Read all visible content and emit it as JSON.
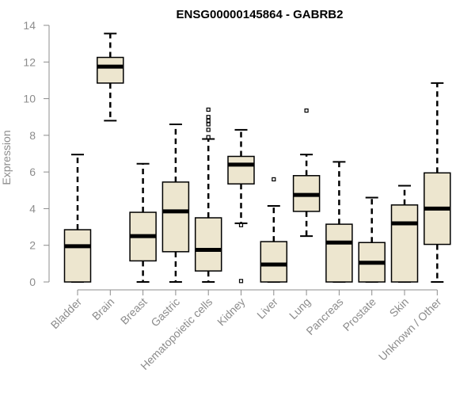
{
  "chart_data": {
    "type": "box",
    "title": "ENSG00000145864 - GABRB2",
    "xlabel": "",
    "ylabel": "Expression",
    "ylim": [
      0,
      14
    ],
    "yticks": [
      0,
      2,
      4,
      6,
      8,
      10,
      12,
      14
    ],
    "grid": false,
    "colors": {
      "box_fill": "#ede6cf",
      "box_stroke": "#000000",
      "axis": "#8c8c8c",
      "text": "#8c8c8c",
      "title": "#000000"
    },
    "categories": [
      "Bladder",
      "Brain",
      "Breast",
      "Gastric",
      "Hematopoietic cells",
      "Kidney",
      "Liver",
      "Lung",
      "Pancreas",
      "Prostate",
      "Skin",
      "Unknown / Other"
    ],
    "boxes": [
      {
        "min": 0,
        "q1": 0,
        "median": 1.95,
        "q3": 2.85,
        "max": 6.95,
        "outliers": []
      },
      {
        "min": 8.8,
        "q1": 10.85,
        "median": 11.75,
        "q3": 12.25,
        "max": 13.55,
        "outliers": []
      },
      {
        "min": 0,
        "q1": 1.15,
        "median": 2.5,
        "q3": 3.8,
        "max": 6.45,
        "outliers": []
      },
      {
        "min": 0,
        "q1": 1.65,
        "median": 3.85,
        "q3": 5.45,
        "max": 8.6,
        "outliers": []
      },
      {
        "min": 0,
        "q1": 0.6,
        "median": 1.75,
        "q3": 3.5,
        "max": 7.8,
        "outliers": [
          7.9,
          8.3,
          8.6,
          8.8,
          9.0,
          9.4
        ]
      },
      {
        "min": 3.2,
        "q1": 5.35,
        "median": 6.4,
        "q3": 6.85,
        "max": 8.3,
        "outliers": [
          3.1,
          0.05
        ]
      },
      {
        "min": 0,
        "q1": 0,
        "median": 0.95,
        "q3": 2.2,
        "max": 4.15,
        "outliers": [
          5.6
        ]
      },
      {
        "min": 2.5,
        "q1": 3.85,
        "median": 4.75,
        "q3": 5.8,
        "max": 6.95,
        "outliers": [
          9.35
        ]
      },
      {
        "min": 0,
        "q1": 0,
        "median": 2.15,
        "q3": 3.15,
        "max": 6.55,
        "outliers": []
      },
      {
        "min": 0,
        "q1": 0,
        "median": 1.05,
        "q3": 2.15,
        "max": 4.6,
        "outliers": []
      },
      {
        "min": 0,
        "q1": 0,
        "median": 3.2,
        "q3": 4.2,
        "max": 5.25,
        "outliers": []
      },
      {
        "min": 0,
        "q1": 2.05,
        "median": 4.0,
        "q3": 5.95,
        "max": 10.85,
        "outliers": []
      }
    ]
  }
}
